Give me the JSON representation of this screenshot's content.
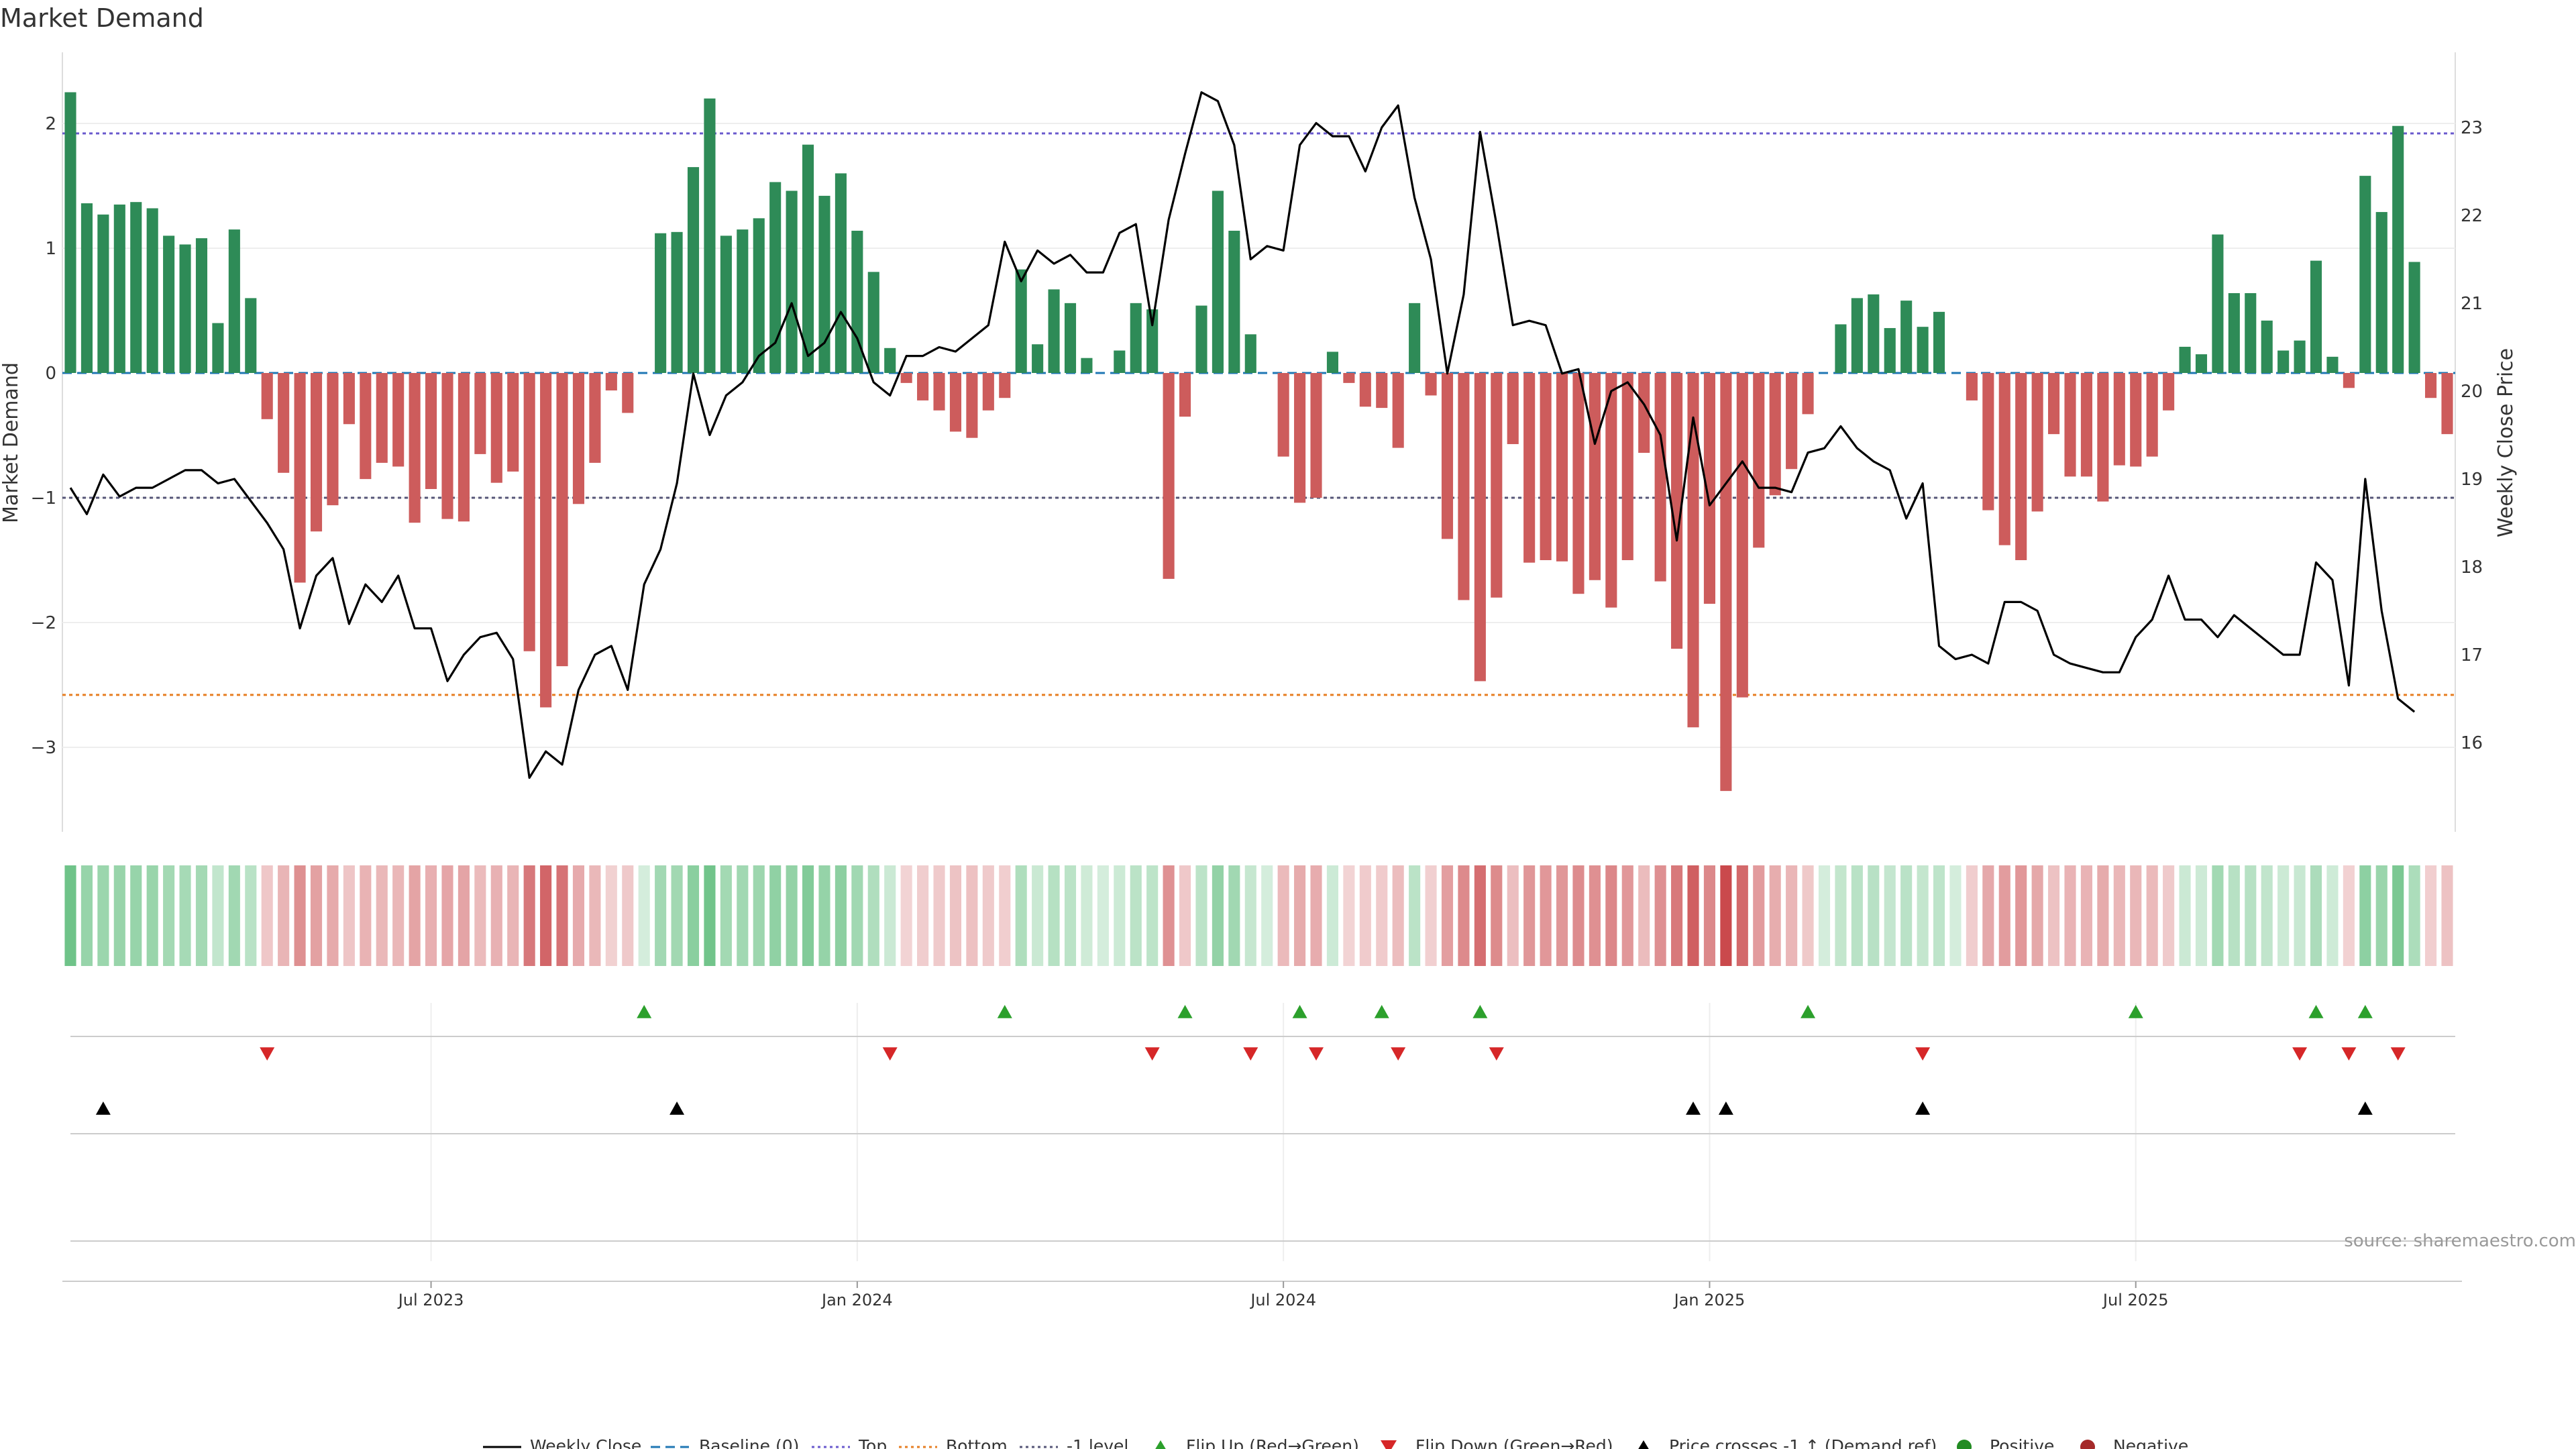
{
  "title": "Market Demand",
  "source": "source: sharemaestro.com",
  "colors": {
    "positive": "#2e8b57",
    "negative": "#cd5c5c",
    "price": "#000000",
    "baseline": "#1f77b4",
    "top": "#6a5acd",
    "bottom": "#e67e22",
    "minus_one": "#555577",
    "flip_up": "#2ca02c",
    "flip_down": "#d62728",
    "cross": "#000000"
  },
  "chart_data": {
    "type": "bar",
    "title": "Market Demand",
    "ylabel": "Market Demand",
    "y2label": "Weekly Close Price",
    "ylim": [
      -3.6,
      2.6
    ],
    "y2lim": [
      15.2,
      23.8
    ],
    "yticks": [
      "2",
      "1",
      "0",
      "−1",
      "−2",
      "−3"
    ],
    "ytick_values": [
      2,
      1,
      0,
      -1,
      -2,
      -3
    ],
    "y2ticks": [
      "23",
      "22",
      "21",
      "20",
      "19",
      "18",
      "17",
      "16"
    ],
    "y2tick_values": [
      23,
      22,
      21,
      20,
      19,
      18,
      17,
      16
    ],
    "xtick_labels": [
      "Jul 2023",
      "Jan 2024",
      "Jul 2024",
      "Jan 2025",
      "Jul 2025"
    ],
    "xtick_index": [
      22,
      48,
      74,
      100,
      126
    ],
    "reference_lines": {
      "top": 1.92,
      "bottom": -2.58,
      "minus_one": -1.0,
      "baseline": 0
    },
    "demand": [
      2.25,
      1.36,
      1.27,
      1.35,
      1.37,
      1.32,
      1.1,
      1.03,
      1.08,
      0.4,
      1.15,
      0.6,
      -0.37,
      -0.8,
      -1.68,
      -1.27,
      -1.06,
      -0.41,
      -0.85,
      -0.72,
      -0.75,
      -1.2,
      -0.93,
      -1.17,
      -1.19,
      -0.65,
      -0.88,
      -0.79,
      -2.23,
      -2.68,
      -2.35,
      -1.05,
      -0.72,
      -0.14,
      -0.32,
      0.0,
      1.12,
      1.13,
      1.65,
      2.2,
      1.1,
      1.15,
      1.24,
      1.53,
      1.46,
      1.83,
      1.42,
      1.6,
      1.14,
      0.81,
      0.2,
      -0.08,
      -0.22,
      -0.3,
      -0.47,
      -0.52,
      -0.3,
      -0.2,
      0.83,
      0.23,
      0.67,
      0.56,
      0.12,
      0.0,
      0.18,
      0.56,
      0.51,
      -1.65,
      -0.35,
      0.54,
      1.46,
      1.14,
      0.31,
      0.0,
      -0.67,
      -1.04,
      -1.0,
      0.17,
      -0.08,
      -0.27,
      -0.28,
      -0.6,
      0.56,
      -0.18,
      -1.33,
      -1.82,
      -2.47,
      -1.8,
      -0.57,
      -1.52,
      -1.5,
      -1.51,
      -1.77,
      -1.66,
      -1.88,
      -1.5,
      -0.64,
      -1.67,
      -2.21,
      -2.84,
      -1.85,
      -3.35,
      -2.6,
      -1.4,
      -0.98,
      -0.77,
      -0.33,
      0.0,
      0.39,
      0.6,
      0.63,
      0.36,
      0.58,
      0.37,
      0.49,
      0.0,
      -0.22,
      -1.1,
      -1.38,
      -1.5,
      -1.11,
      -0.49,
      -0.83,
      -0.83,
      -1.03,
      -0.74,
      -0.75,
      -0.67,
      -0.3,
      0.21,
      0.15,
      1.11,
      0.64,
      0.64,
      0.42,
      0.18,
      0.26,
      0.9,
      0.13,
      -0.12,
      1.58,
      1.29,
      1.98,
      0.89,
      -0.2,
      -0.49
    ],
    "price": [
      18.9,
      18.6,
      19.05,
      18.8,
      18.9,
      18.9,
      19.0,
      19.1,
      19.1,
      18.95,
      19.0,
      18.75,
      18.5,
      18.2,
      17.3,
      17.9,
      18.1,
      17.35,
      17.8,
      17.6,
      17.9,
      17.3,
      17.3,
      16.7,
      17.0,
      17.2,
      17.25,
      16.95,
      15.6,
      15.9,
      15.75,
      16.6,
      17.0,
      17.1,
      16.6,
      17.8,
      18.2,
      18.95,
      20.2,
      19.5,
      19.95,
      20.1,
      20.4,
      20.55,
      21.0,
      20.4,
      20.55,
      20.9,
      20.6,
      20.1,
      19.95,
      20.4,
      20.4,
      20.5,
      20.45,
      20.6,
      20.75,
      21.7,
      21.25,
      21.6,
      21.45,
      21.55,
      21.35,
      21.35,
      21.8,
      21.9,
      20.75,
      21.95,
      22.7,
      23.4,
      23.3,
      22.8,
      21.5,
      21.65,
      21.6,
      22.8,
      23.05,
      22.9,
      22.9,
      22.5,
      23.0,
      23.25,
      22.2,
      21.5,
      20.2,
      21.1,
      22.95,
      21.9,
      20.75,
      20.8,
      20.75,
      20.2,
      20.25,
      19.4,
      20.0,
      20.1,
      19.85,
      19.5,
      18.3,
      19.7,
      18.7,
      18.95,
      19.2,
      18.9,
      18.9,
      18.85,
      19.3,
      19.35,
      19.6,
      19.35,
      19.2,
      19.1,
      18.55,
      18.95,
      17.1,
      16.95,
      17.0,
      16.9,
      17.6,
      17.6,
      17.5,
      17.0,
      16.9,
      16.85,
      16.8,
      16.8,
      17.2,
      17.4,
      17.9,
      17.4,
      17.4,
      17.2,
      17.45,
      17.3,
      17.15,
      17.0,
      17.0,
      18.05,
      17.85,
      16.65,
      19.0,
      17.5,
      16.5,
      16.35
    ],
    "flip_up_index": [
      35,
      57,
      68,
      75,
      80,
      86,
      106,
      126,
      137,
      140
    ],
    "flip_down_index": [
      12,
      50,
      66,
      72,
      76,
      81,
      87,
      113,
      136,
      139,
      142
    ],
    "cross_index": [
      2,
      37,
      99,
      101,
      113,
      140
    ],
    "legend_position": "bottom",
    "legend": [
      "Weekly Close",
      "Baseline (0)",
      "Top",
      "Bottom",
      "-1 level",
      "Flip Up (Red→Green)",
      "Flip Down (Green→Red)",
      "Price crosses -1 ↑ (Demand ref)",
      "Positive",
      "Negative"
    ]
  }
}
